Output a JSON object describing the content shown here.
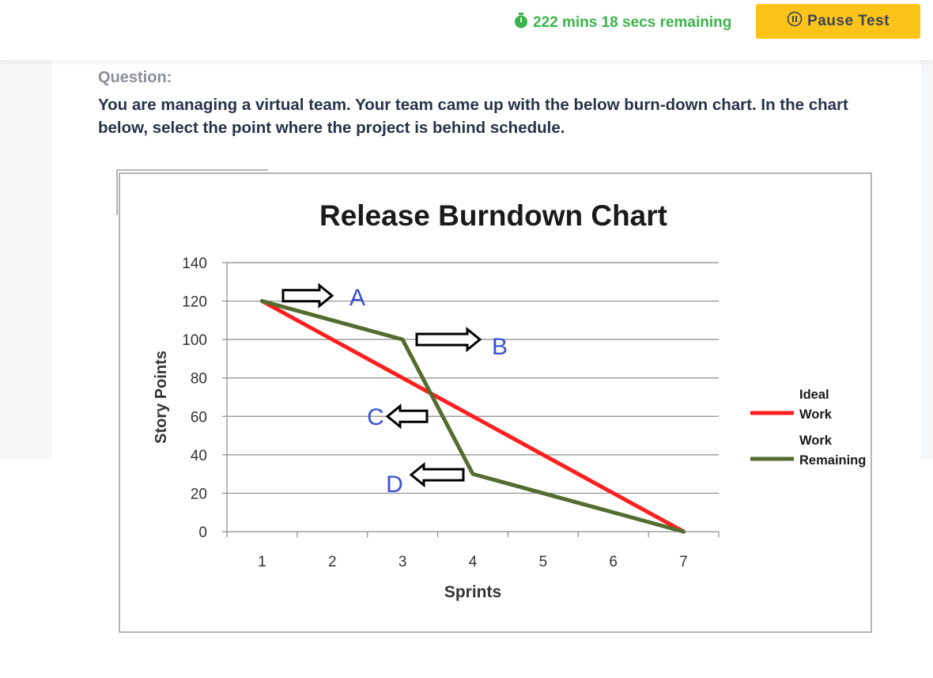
{
  "timer": {
    "icon": "stopwatch-icon",
    "text": "222 mins 18 secs remaining",
    "color": "#3bb54a"
  },
  "pause_button": {
    "icon": "pause-circle-icon",
    "label": "Pause Test",
    "color": "#fcc419"
  },
  "question": {
    "label": "Question:",
    "text": "You are managing a virtual team. Your team came up with the below burn-down chart. In the chart below, select the point where the project is behind schedule."
  },
  "chart_data": {
    "type": "line",
    "title": "Release Burndown Chart",
    "xlabel": "Sprints",
    "ylabel": "Story Points",
    "x_ticks": [
      "1",
      "2",
      "3",
      "4",
      "5",
      "6",
      "7"
    ],
    "y_ticks": [
      "0",
      "20",
      "40",
      "60",
      "80",
      "100",
      "120",
      "140"
    ],
    "xlim": [
      0.5,
      7.5
    ],
    "ylim": [
      0,
      140
    ],
    "grid": true,
    "legend_position": "right",
    "series": [
      {
        "name": "Ideal Work",
        "legend": [
          "Ideal",
          "Work"
        ],
        "color": "#ff1f1f",
        "x": [
          1,
          7
        ],
        "y": [
          120,
          0
        ]
      },
      {
        "name": "Work Remaining",
        "legend": [
          "Work",
          "Remaining"
        ],
        "color": "#556b2f",
        "x": [
          1,
          3,
          4,
          7
        ],
        "y": [
          120,
          100,
          30,
          0
        ]
      }
    ],
    "annotations": [
      {
        "label": "A",
        "x": 1.8,
        "y": 122,
        "arrow": "right"
      },
      {
        "label": "B",
        "x": 3.7,
        "y": 100,
        "arrow": "right"
      },
      {
        "label": "C",
        "x": 2.6,
        "y": 60,
        "arrow": "left"
      },
      {
        "label": "D",
        "x": 2.9,
        "y": 30,
        "arrow": "left"
      }
    ],
    "annotation_color": "#3a4fd6"
  }
}
